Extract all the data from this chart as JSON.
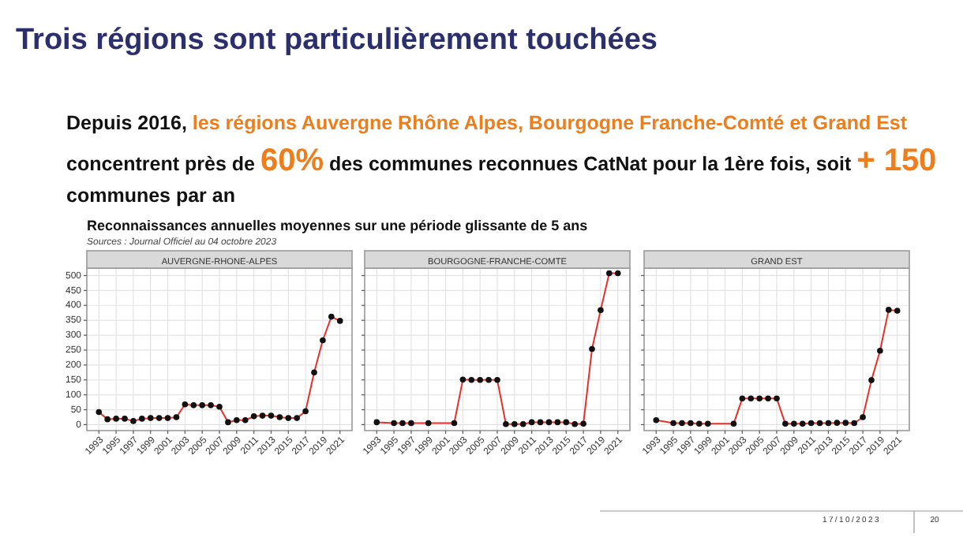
{
  "chart_data": [
    {
      "type": "line",
      "title": "AUVERGNE-RHONE-ALPES",
      "annotations": [
        "Trois régions sont particulièrement touchées",
        "Depuis 2016, ",
        "les régions Auvergne Rhône Alpes, Bourgogne Franche-Comté et Grand Est",
        "concentrent près de ",
        "60%",
        " des communes reconnues CatNat pour la 1ère fois, soit ",
        "+ 150",
        "communes par an",
        "Reconnaissances annuelles moyennes sur une période glissante de 5 ans",
        "Sources : Journal Officiel au 04 octobre 2023",
        "17/10/2023",
        "20"
      ],
      "series": [
        {
          "color": "#e8302a",
          "x": [
            1993,
            1994,
            1995,
            1996,
            1997,
            1998,
            1999,
            2000,
            2001,
            2002,
            2003,
            2004,
            2005,
            2006,
            2007,
            2008,
            2009,
            2010,
            2011,
            2012,
            2013,
            2014,
            2015,
            2016,
            2017,
            2018,
            2019,
            2020,
            2021
          ],
          "values": [
            42,
            18,
            20,
            20,
            12,
            20,
            22,
            22,
            22,
            25,
            68,
            65,
            65,
            65,
            60,
            8,
            15,
            15,
            28,
            30,
            30,
            25,
            22,
            22,
            45,
            175,
            283,
            362,
            348
          ]
        }
      ],
      "xlim": [
        1991.6,
        2022.4
      ],
      "xticks": [
        1993,
        1995,
        1997,
        1999,
        2001,
        2003,
        2005,
        2007,
        2009,
        2011,
        2013,
        2015,
        2017,
        2019,
        2021
      ],
      "ylim": [
        -20,
        525
      ],
      "yticks": [
        0,
        50,
        100,
        150,
        200,
        250,
        300,
        350,
        400,
        450,
        500
      ],
      "grid": true,
      "marker": "circle",
      "line_style": "solid"
    },
    {
      "type": "line",
      "title": "BOURGOGNE-FRANCHE-COMTE",
      "series": [
        {
          "color": "#e8302a",
          "x": [
            1993,
            1995,
            1996,
            1997,
            1999,
            2002,
            2003,
            2004,
            2005,
            2006,
            2007,
            2008,
            2009,
            2010,
            2011,
            2012,
            2013,
            2014,
            2015,
            2016,
            2017,
            2018,
            2019,
            2020,
            2021
          ],
          "values": [
            8,
            5,
            5,
            5,
            5,
            5,
            151,
            150,
            150,
            150,
            150,
            2,
            2,
            2,
            8,
            8,
            8,
            8,
            8,
            2,
            3,
            254,
            384,
            508,
            508
          ]
        }
      ],
      "xlim": [
        1991.6,
        2022.4
      ],
      "xticks": [
        1993,
        1995,
        1997,
        1999,
        2001,
        2003,
        2005,
        2007,
        2009,
        2011,
        2013,
        2015,
        2017,
        2019,
        2021
      ],
      "ylim": [
        -20,
        525
      ],
      "yticks": [
        0,
        50,
        100,
        150,
        200,
        250,
        300,
        350,
        400,
        450,
        500
      ],
      "grid": true,
      "marker": "circle",
      "line_style": "solid",
      "tick_labels": "x"
    },
    {
      "type": "line",
      "title": "GRAND EST",
      "series": [
        {
          "color": "#e8302a",
          "x": [
            1993,
            1995,
            1996,
            1997,
            1998,
            1999,
            2002,
            2003,
            2004,
            2005,
            2006,
            2007,
            2008,
            2009,
            2010,
            2011,
            2012,
            2013,
            2014,
            2015,
            2016,
            2017,
            2018,
            2019,
            2020,
            2021
          ],
          "values": [
            15,
            5,
            5,
            5,
            3,
            3,
            3,
            88,
            88,
            88,
            88,
            88,
            3,
            3,
            3,
            5,
            5,
            5,
            6,
            6,
            5,
            25,
            149,
            248,
            385,
            382
          ]
        }
      ],
      "xlim": [
        1991.6,
        2022.4
      ],
      "xticks": [
        1993,
        1995,
        1997,
        1999,
        2001,
        2003,
        2005,
        2007,
        2009,
        2011,
        2013,
        2015,
        2017,
        2019,
        2021
      ],
      "ylim": [
        -20,
        525
      ],
      "yticks": [
        0,
        50,
        100,
        150,
        200,
        250,
        300,
        350,
        400,
        450,
        500
      ],
      "grid": true,
      "marker": "circle",
      "line_style": "solid",
      "tick_labels": "x"
    }
  ]
}
